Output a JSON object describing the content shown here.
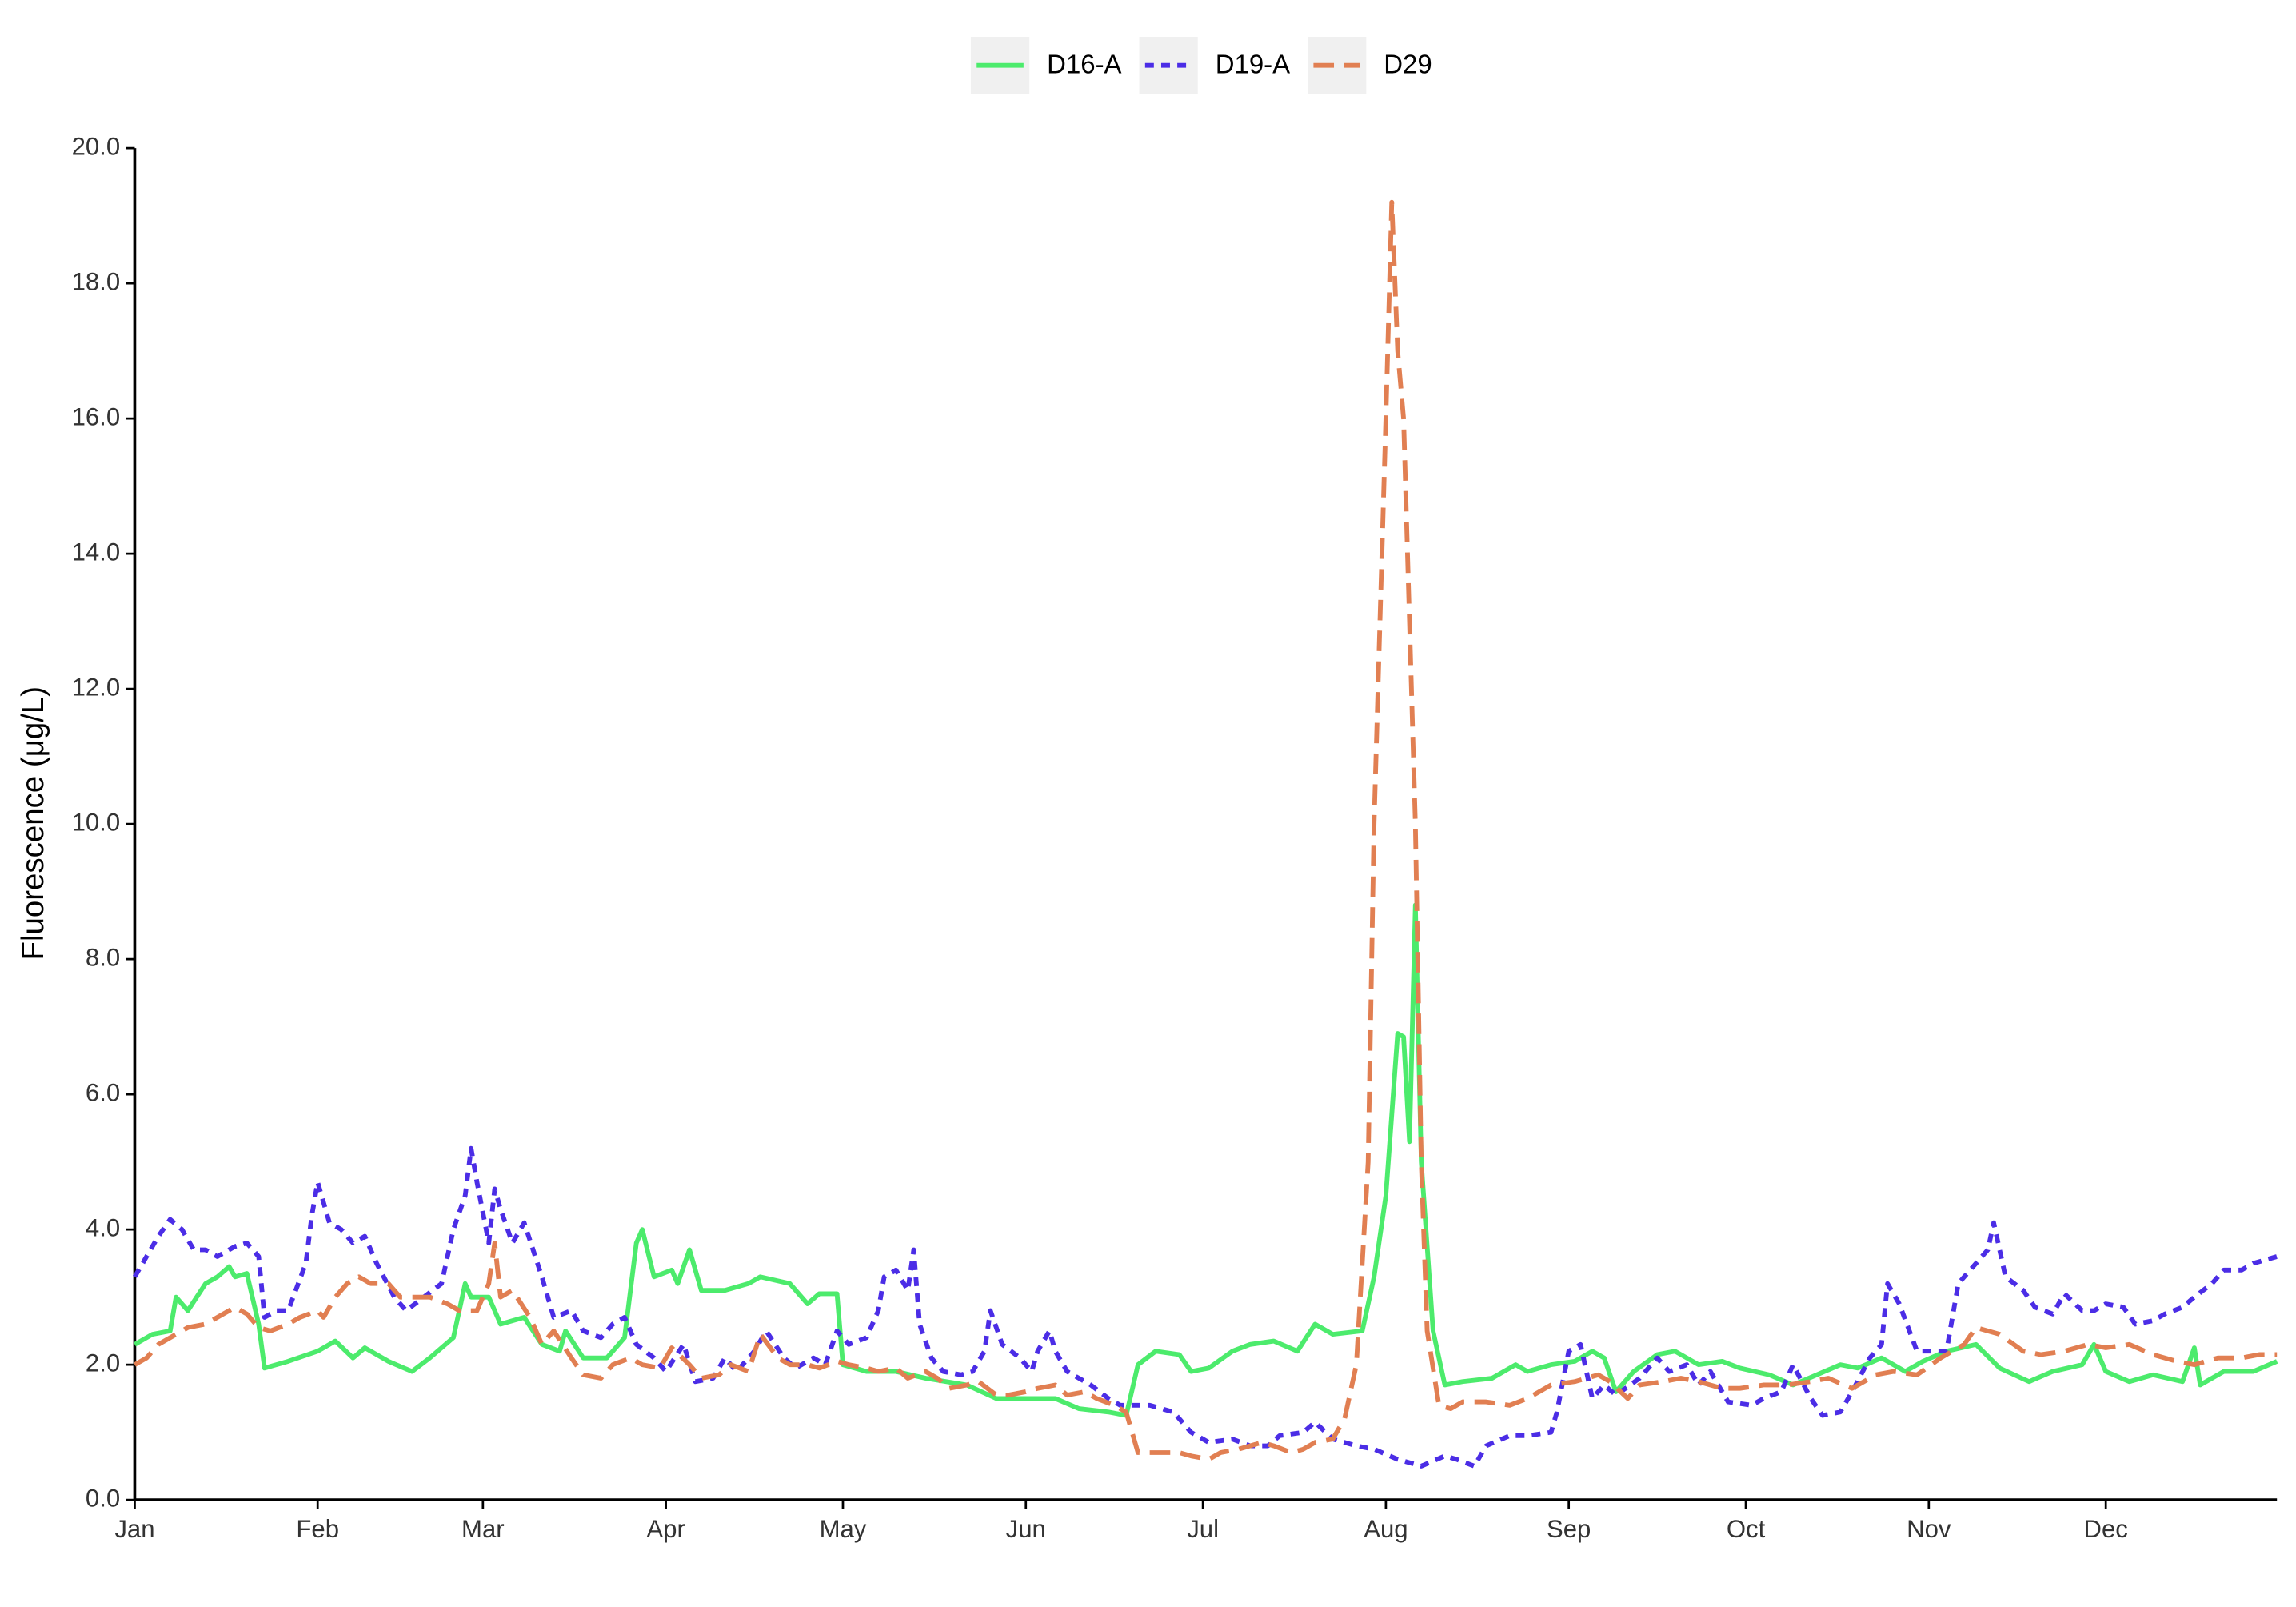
{
  "chart_data": {
    "type": "line",
    "y_label": "Fluorescence (μg/L)",
    "xlim": [
      0,
      363
    ],
    "xticks": [
      {
        "value": 0,
        "label": "Jan"
      },
      {
        "value": 31,
        "label": "Feb"
      },
      {
        "value": 59,
        "label": "Mar"
      },
      {
        "value": 90,
        "label": "Apr"
      },
      {
        "value": 120,
        "label": "May"
      },
      {
        "value": 151,
        "label": "Jun"
      },
      {
        "value": 181,
        "label": "Jul"
      },
      {
        "value": 212,
        "label": "Aug"
      },
      {
        "value": 243,
        "label": "Sep"
      },
      {
        "value": 273,
        "label": "Oct"
      },
      {
        "value": 304,
        "label": "Nov"
      },
      {
        "value": 334,
        "label": "Dec"
      }
    ],
    "ylim": [
      0,
      20
    ],
    "yticks": [
      {
        "value": 0,
        "label": "0.0"
      },
      {
        "value": 2,
        "label": "2.0"
      },
      {
        "value": 4,
        "label": "4.0"
      },
      {
        "value": 6,
        "label": "6.0"
      },
      {
        "value": 8,
        "label": "8.0"
      },
      {
        "value": 10,
        "label": "10.0"
      },
      {
        "value": 12,
        "label": "12.0"
      },
      {
        "value": 14,
        "label": "14.0"
      },
      {
        "value": 16,
        "label": "16.0"
      },
      {
        "value": 18,
        "label": "18.0"
      },
      {
        "value": 20,
        "label": "20.0"
      }
    ],
    "grid": false,
    "legend": "top",
    "series": [
      {
        "name": "D16-A",
        "color": "#4ceb6c",
        "dash": "solid",
        "x": [
          0,
          3,
          6,
          7,
          9,
          12,
          14,
          16,
          17,
          19,
          21,
          22,
          26,
          31,
          34,
          37,
          39,
          43,
          47,
          50,
          54,
          56,
          57,
          60,
          62,
          66,
          69,
          72,
          73,
          76,
          80,
          83,
          85,
          86,
          88,
          91,
          92,
          94,
          96,
          100,
          104,
          106,
          111,
          114,
          116,
          119,
          120,
          124,
          129,
          134,
          141,
          146,
          151,
          156,
          160,
          165,
          168,
          170,
          173,
          177,
          179,
          182,
          186,
          189,
          193,
          197,
          200,
          203,
          208,
          210,
          212,
          214,
          215,
          216,
          217,
          218,
          220,
          222,
          225,
          230,
          234,
          236,
          240,
          244,
          247,
          249,
          251,
          254,
          258,
          261,
          265,
          269,
          272,
          277,
          281,
          285,
          289,
          292,
          296,
          300,
          303,
          307,
          312,
          316,
          321,
          325,
          330,
          332,
          334,
          338,
          342,
          347,
          349,
          350,
          354,
          359,
          363
        ],
        "values": [
          2.3,
          2.45,
          2.5,
          3.0,
          2.8,
          3.2,
          3.3,
          3.45,
          3.3,
          3.35,
          2.6,
          1.95,
          2.05,
          2.2,
          2.35,
          2.1,
          2.25,
          2.05,
          1.9,
          2.1,
          2.4,
          3.2,
          3.0,
          3.0,
          2.6,
          2.7,
          2.3,
          2.2,
          2.5,
          2.1,
          2.1,
          2.4,
          3.8,
          4.0,
          3.3,
          3.4,
          3.2,
          3.7,
          3.1,
          3.1,
          3.2,
          3.3,
          3.2,
          2.9,
          3.05,
          3.05,
          2.0,
          1.9,
          1.9,
          1.8,
          1.7,
          1.5,
          1.5,
          1.5,
          1.35,
          1.3,
          1.25,
          2.0,
          2.2,
          2.15,
          1.9,
          1.95,
          2.2,
          2.3,
          2.35,
          2.2,
          2.6,
          2.45,
          2.5,
          3.3,
          4.5,
          6.9,
          6.85,
          5.3,
          8.8,
          5.0,
          2.5,
          1.7,
          1.75,
          1.8,
          2.0,
          1.9,
          2.0,
          2.05,
          2.2,
          2.1,
          1.6,
          1.9,
          2.15,
          2.2,
          2.0,
          2.05,
          1.95,
          1.85,
          1.7,
          1.85,
          2.0,
          1.95,
          2.1,
          1.9,
          2.05,
          2.2,
          2.3,
          1.95,
          1.75,
          1.9,
          2.0,
          2.3,
          1.9,
          1.75,
          1.85,
          1.75,
          2.25,
          1.7,
          1.9,
          1.9,
          2.05
        ]
      },
      {
        "name": "D19-A",
        "color": "#4b2de6",
        "dash": "dotted",
        "x": [
          0,
          2,
          4,
          6,
          8,
          10,
          12,
          14,
          17,
          19,
          21,
          22,
          24,
          26,
          29,
          30,
          31,
          33,
          35,
          37,
          39,
          41,
          44,
          46,
          49,
          52,
          54,
          56,
          57,
          58,
          60,
          61,
          62,
          64,
          66,
          69,
          71,
          74,
          76,
          79,
          81,
          83,
          85,
          88,
          90,
          93,
          95,
          98,
          100,
          102,
          105,
          107,
          110,
          112,
          115,
          117,
          119,
          121,
          124,
          126,
          127,
          129,
          131,
          132,
          133,
          135,
          137,
          140,
          142,
          144,
          145,
          147,
          150,
          152,
          153,
          155,
          156,
          158,
          162,
          165,
          167,
          169,
          172,
          176,
          179,
          182,
          186,
          189,
          192,
          194,
          198,
          200,
          203,
          207,
          210,
          214,
          218,
          222,
          224,
          227,
          229,
          233,
          236,
          240,
          241,
          243,
          245,
          247,
          249,
          251,
          255,
          258,
          260,
          263,
          265,
          267,
          270,
          274,
          276,
          279,
          281,
          284,
          286,
          289,
          291,
          294,
          296,
          297,
          299,
          302,
          304,
          307,
          309,
          312,
          314,
          315,
          317,
          320,
          322,
          325,
          327,
          330,
          332,
          334,
          337,
          339,
          342,
          344,
          347,
          349,
          352,
          354,
          357,
          359,
          363
        ],
        "values": [
          3.3,
          3.6,
          3.9,
          4.15,
          4.0,
          3.7,
          3.7,
          3.6,
          3.75,
          3.8,
          3.6,
          2.7,
          2.8,
          2.8,
          3.5,
          4.2,
          4.7,
          4.1,
          4.0,
          3.8,
          3.9,
          3.5,
          3.0,
          2.8,
          3.0,
          3.2,
          4.0,
          4.5,
          5.2,
          4.7,
          3.8,
          4.6,
          4.3,
          3.8,
          4.1,
          3.3,
          2.7,
          2.8,
          2.5,
          2.4,
          2.6,
          2.7,
          2.3,
          2.1,
          1.9,
          2.3,
          1.75,
          1.8,
          2.1,
          1.9,
          2.2,
          2.5,
          2.1,
          1.95,
          2.1,
          2.0,
          2.5,
          2.3,
          2.4,
          2.8,
          3.3,
          3.4,
          3.1,
          3.7,
          2.6,
          2.1,
          1.9,
          1.85,
          1.9,
          2.2,
          2.8,
          2.3,
          2.1,
          1.9,
          2.2,
          2.5,
          2.2,
          1.9,
          1.7,
          1.5,
          1.4,
          1.4,
          1.4,
          1.3,
          1.0,
          0.85,
          0.9,
          0.8,
          0.8,
          0.95,
          1.0,
          1.15,
          0.9,
          0.8,
          0.75,
          0.6,
          0.5,
          0.65,
          0.6,
          0.5,
          0.8,
          0.95,
          0.95,
          1.0,
          1.3,
          2.2,
          2.3,
          1.5,
          1.7,
          1.55,
          1.8,
          2.1,
          1.9,
          2.0,
          1.7,
          1.9,
          1.45,
          1.4,
          1.5,
          1.6,
          2.0,
          1.5,
          1.25,
          1.3,
          1.6,
          2.1,
          2.3,
          3.2,
          2.9,
          2.2,
          2.2,
          2.2,
          3.2,
          3.5,
          3.7,
          4.1,
          3.3,
          3.1,
          2.85,
          2.75,
          3.05,
          2.8,
          2.8,
          2.9,
          2.85,
          2.6,
          2.65,
          2.75,
          2.85,
          3.0,
          3.2,
          3.4,
          3.4,
          3.5,
          3.6
        ]
      },
      {
        "name": "D29",
        "color": "#e17f52",
        "dash": "dashed",
        "x": [
          0,
          2,
          4,
          7,
          9,
          12,
          14,
          17,
          19,
          21,
          23,
          26,
          28,
          31,
          32,
          34,
          36,
          38,
          40,
          43,
          45,
          48,
          50,
          53,
          55,
          58,
          60,
          61,
          62,
          64,
          67,
          69,
          71,
          74,
          76,
          79,
          81,
          84,
          86,
          89,
          91,
          94,
          96,
          99,
          101,
          104,
          106,
          109,
          111,
          114,
          116,
          119,
          121,
          124,
          126,
          129,
          131,
          134,
          136,
          138,
          141,
          143,
          146,
          148,
          151,
          153,
          156,
          158,
          161,
          163,
          166,
          168,
          170,
          173,
          177,
          179,
          182,
          184,
          187,
          191,
          193,
          196,
          198,
          200,
          203,
          205,
          207,
          209,
          210,
          212,
          213,
          214,
          215,
          217,
          218,
          219,
          221,
          223,
          225,
          229,
          233,
          236,
          240,
          244,
          248,
          250,
          253,
          255,
          259,
          262,
          265,
          269,
          272,
          276,
          280,
          284,
          287,
          291,
          295,
          298,
          302,
          306,
          310,
          312,
          316,
          320,
          323,
          327,
          331,
          334,
          338,
          342,
          346,
          349,
          353,
          357,
          360,
          363
        ],
        "values": [
          2.0,
          2.1,
          2.3,
          2.45,
          2.55,
          2.6,
          2.7,
          2.85,
          2.75,
          2.55,
          2.5,
          2.6,
          2.7,
          2.8,
          2.7,
          3.0,
          3.2,
          3.3,
          3.2,
          3.2,
          3.0,
          3.0,
          3.0,
          2.9,
          2.8,
          2.8,
          3.2,
          3.8,
          3.0,
          3.1,
          2.7,
          2.3,
          2.5,
          2.1,
          1.85,
          1.8,
          2.0,
          2.1,
          2.0,
          1.95,
          2.25,
          2.0,
          1.8,
          1.85,
          2.0,
          1.9,
          2.45,
          2.1,
          2.0,
          2.0,
          1.95,
          2.05,
          2.0,
          1.95,
          1.9,
          1.95,
          1.8,
          1.9,
          1.8,
          1.65,
          1.7,
          1.75,
          1.55,
          1.55,
          1.6,
          1.65,
          1.7,
          1.55,
          1.6,
          1.5,
          1.4,
          1.3,
          0.7,
          0.7,
          0.7,
          0.65,
          0.6,
          0.7,
          0.75,
          0.85,
          0.8,
          0.7,
          0.75,
          0.85,
          0.9,
          1.2,
          2.0,
          5.0,
          10.0,
          16.0,
          19.2,
          17.0,
          16.0,
          10.0,
          5.0,
          2.5,
          1.4,
          1.35,
          1.45,
          1.45,
          1.4,
          1.5,
          1.7,
          1.75,
          1.85,
          1.75,
          1.5,
          1.7,
          1.75,
          1.8,
          1.75,
          1.65,
          1.65,
          1.7,
          1.7,
          1.75,
          1.8,
          1.65,
          1.85,
          1.9,
          1.85,
          2.1,
          2.3,
          2.55,
          2.45,
          2.2,
          2.15,
          2.2,
          2.3,
          2.25,
          2.3,
          2.15,
          2.05,
          2.0,
          2.1,
          2.1,
          2.15,
          2.15
        ]
      }
    ]
  }
}
